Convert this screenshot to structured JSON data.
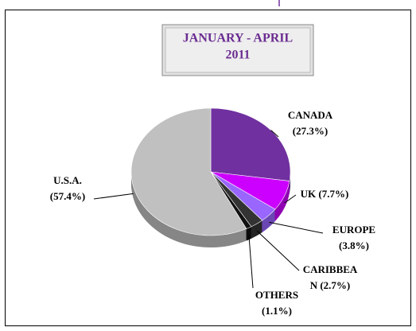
{
  "chart_data": {
    "type": "pie",
    "title": [
      "JANUARY - APRIL",
      "2011"
    ],
    "values": [
      27.3,
      7.7,
      3.8,
      2.7,
      1.1,
      57.4
    ],
    "value_labels": [
      [
        "CANADA",
        "(27.3%)"
      ],
      [
        "UK (7.7%)"
      ],
      [
        "EUROPE",
        "(3.8%)"
      ],
      [
        "CARIBBEA",
        "N (2.7%)"
      ],
      [
        "OTHERS",
        "(1.1%)"
      ],
      [
        "U.S.A.",
        "(57.4%)"
      ]
    ],
    "colors": [
      "#7030a0",
      "#cc00ff",
      "#9966ff",
      "#333333",
      "#111111",
      "#c0c0c0"
    ]
  }
}
